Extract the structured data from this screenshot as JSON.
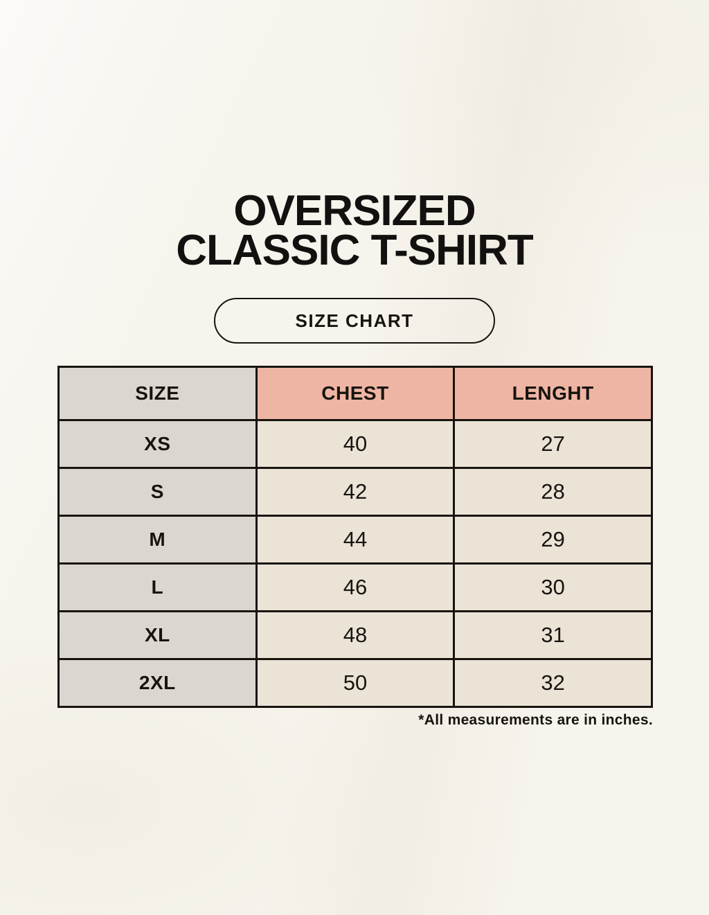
{
  "page": {
    "background_color": "#f7f4ed",
    "text_color": "#17140f"
  },
  "title": {
    "line1": "OVERSIZED",
    "line2": "CLASSIC T-SHIRT"
  },
  "badge": {
    "label": "SIZE CHART"
  },
  "table": {
    "columns": [
      "SIZE",
      "CHEST",
      "LENGHT"
    ],
    "rows": [
      {
        "size": "XS",
        "chest": "40",
        "lenght": "27"
      },
      {
        "size": "S",
        "chest": "42",
        "lenght": "28"
      },
      {
        "size": "M",
        "chest": "44",
        "lenght": "29"
      },
      {
        "size": "L",
        "chest": "46",
        "lenght": "30"
      },
      {
        "size": "XL",
        "chest": "48",
        "lenght": "31"
      },
      {
        "size": "2XL",
        "chest": "50",
        "lenght": "32"
      }
    ],
    "colors": {
      "size_column_bg": "#dcd6d0",
      "header_accent_bg": "#efb5a4",
      "body_cell_bg": "#eae3d6",
      "border": "#17140f"
    }
  },
  "footnote": {
    "text": "*All measurements are in inches."
  }
}
